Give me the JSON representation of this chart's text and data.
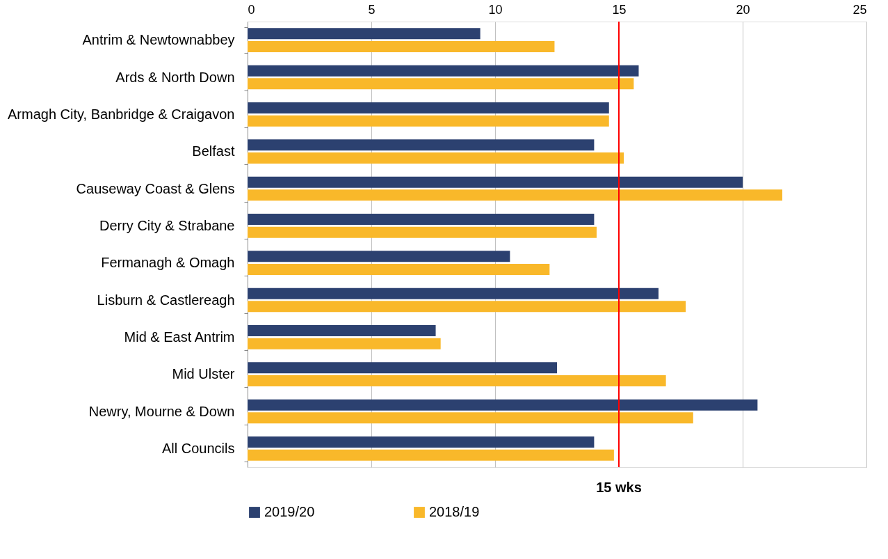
{
  "chart_data": {
    "type": "bar",
    "orientation": "horizontal",
    "categories": [
      "Antrim & Newtownabbey",
      "Ards & North Down",
      "Armagh City, Banbridge & Craigavon",
      "Belfast",
      "Causeway Coast & Glens",
      "Derry City & Strabane",
      "Fermanagh & Omagh",
      "Lisburn & Castlereagh",
      "Mid & East Antrim",
      "Mid Ulster",
      "Newry, Mourne & Down",
      "All Councils"
    ],
    "series": [
      {
        "name": "2019/20",
        "color": "#2c4170",
        "values": [
          9.4,
          15.8,
          14.6,
          14.0,
          20.0,
          14.0,
          10.6,
          16.6,
          7.6,
          12.5,
          20.6,
          14.0
        ]
      },
      {
        "name": "2018/19",
        "color": "#f9b82a",
        "values": [
          12.4,
          15.6,
          14.6,
          15.2,
          21.6,
          14.1,
          12.2,
          17.7,
          7.8,
          16.9,
          18.0,
          14.8
        ]
      }
    ],
    "xlim": [
      0,
      25
    ],
    "xticks": [
      0,
      5,
      10,
      15,
      20,
      25
    ],
    "grid": "x",
    "legend": "bottom",
    "ref_lines": [
      {
        "axis": "x",
        "value": 15,
        "label": "15 wks",
        "color": "#ff0000"
      }
    ]
  }
}
